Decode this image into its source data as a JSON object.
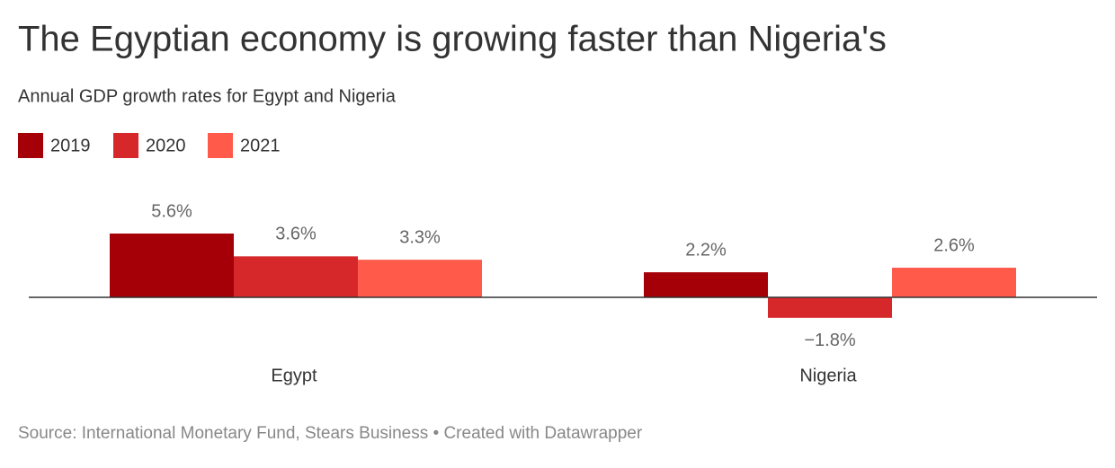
{
  "chart_data": {
    "type": "bar",
    "title": "The Egyptian economy is growing faster than Nigeria's",
    "subtitle": "Annual GDP growth rates for Egypt and Nigeria",
    "source": "Source: International Monetary Fund, Stears Business • Created with Datawrapper",
    "categories": [
      "Egypt",
      "Nigeria"
    ],
    "series": [
      {
        "name": "2019",
        "color": "#a50008",
        "values": [
          5.6,
          2.2
        ],
        "value_labels": [
          "5.6%",
          "2.2%"
        ]
      },
      {
        "name": "2020",
        "color": "#d6282b",
        "values": [
          3.6,
          -1.8
        ],
        "value_labels": [
          "3.6%",
          "−1.8%"
        ]
      },
      {
        "name": "2021",
        "color": "#ff5a4a",
        "values": [
          3.3,
          2.6
        ],
        "value_labels": [
          "3.3%",
          "2.6%"
        ]
      }
    ]
  }
}
